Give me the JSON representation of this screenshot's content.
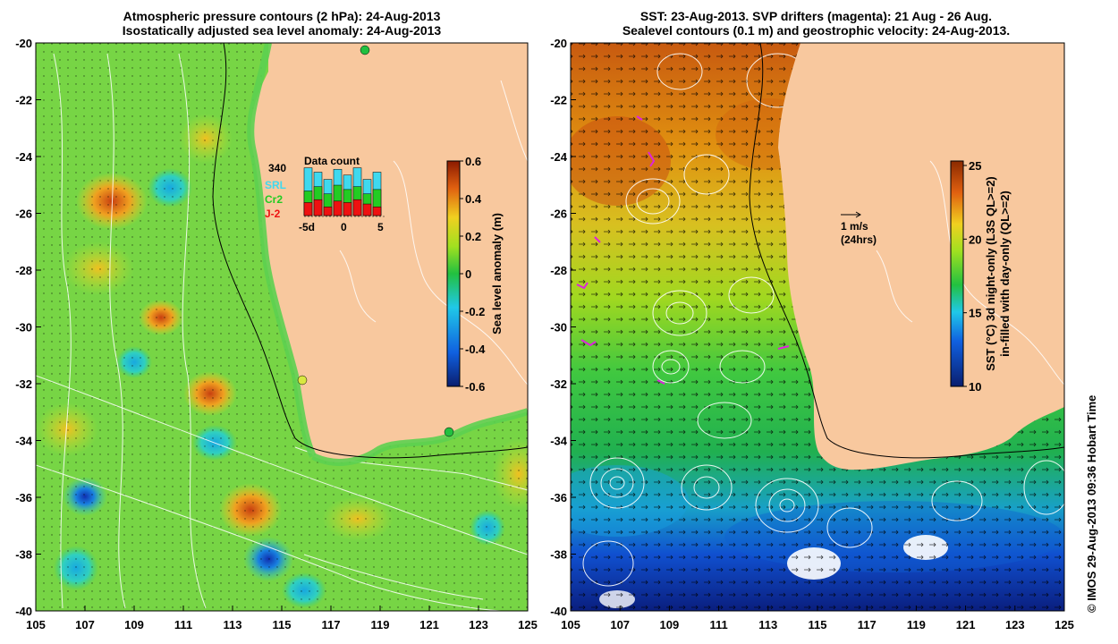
{
  "left_panel": {
    "title_line1": "Atmospheric pressure contours (2 hPa): 24-Aug-2013",
    "title_line2": "Isostatically adjusted sea level anomaly: 24-Aug-2013",
    "y_ticks": [
      "-20",
      "-22",
      "-24",
      "-26",
      "-28",
      "-30",
      "-32",
      "-34",
      "-36",
      "-38",
      "-40"
    ],
    "x_ticks": [
      "105",
      "107",
      "109",
      "111",
      "113",
      "115",
      "117",
      "119",
      "121",
      "123",
      "125"
    ],
    "colorbar": {
      "label": "Sea level anomaly (m)",
      "ticks": [
        "0.6",
        "0.4",
        "0.2",
        "0",
        "-0.2",
        "-0.4",
        "-0.6"
      ]
    },
    "inset": {
      "title": "Data count",
      "max_label": "340",
      "legend": [
        "SRL",
        "Cr2",
        "J-2"
      ],
      "legend_colors": [
        "#3fd9ef",
        "#22cc22",
        "#ee1111"
      ],
      "x_labels": [
        "-5d",
        "0",
        "5"
      ],
      "counts_srl": [
        330,
        300,
        250,
        320,
        280,
        330,
        250,
        300
      ],
      "counts_cr2": [
        170,
        200,
        150,
        210,
        180,
        200,
        150,
        180
      ],
      "counts_j2": [
        90,
        110,
        60,
        100,
        90,
        110,
        80,
        60
      ]
    }
  },
  "right_panel": {
    "title_line1": "SST: 23-Aug-2013. SVP drifters (magenta): 21 Aug - 26 Aug.",
    "title_line2": "Sealevel contours (0.1 m) and geostrophic velocity: 24-Aug-2013.",
    "y_ticks": [
      "-20",
      "-22",
      "-24",
      "-26",
      "-28",
      "-30",
      "-32",
      "-34",
      "-36",
      "-38",
      "-40"
    ],
    "x_ticks": [
      "105",
      "107",
      "109",
      "111",
      "113",
      "115",
      "117",
      "119",
      "121",
      "123",
      "125"
    ],
    "scale_label": "1 m/s",
    "scale_sublabel": "(24hrs)",
    "colorbar": {
      "label_line1": "SST (°C)  3d night-only (L3S QL>=2)",
      "label_line2": "in-filled with day-only (QL>=2)",
      "ticks": [
        "25",
        "20",
        "15",
        "10"
      ]
    }
  },
  "credit": "© IMOS 29-Aug-2013 09:36 Hobart Time",
  "colors": {
    "land": "#f8c89e",
    "sla_high": "#8b1a00",
    "sla_low": "#0a1e6e",
    "sst_high": "#8b2a00",
    "sst_low": "#0a1e6e"
  }
}
